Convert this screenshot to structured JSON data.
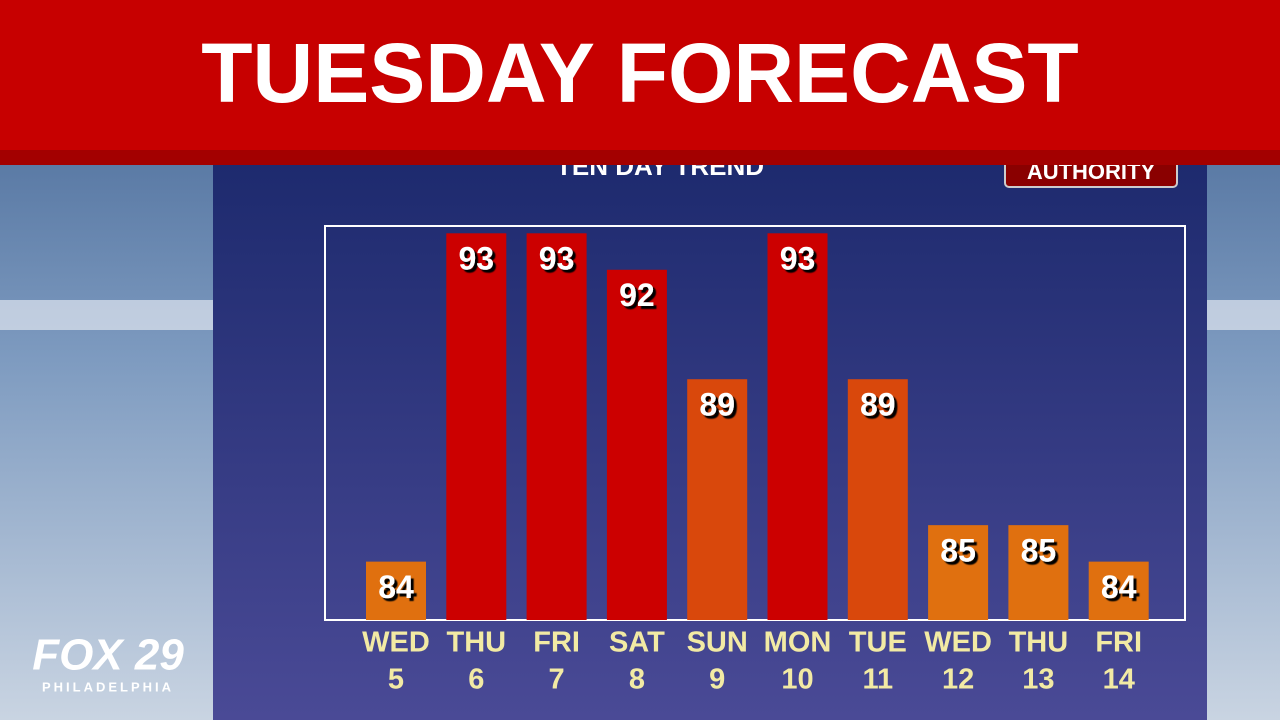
{
  "chart_data": {
    "type": "bar",
    "title": "TUESDAY FORECAST",
    "subtitle": "TEN DAY TREND",
    "brand": "AUTHORITY",
    "logo": {
      "name": "FOX 29",
      "city": "PHILADELPHIA"
    },
    "categories": [
      [
        "WED",
        "5"
      ],
      [
        "THU",
        "6"
      ],
      [
        "FRI",
        "7"
      ],
      [
        "SAT",
        "8"
      ],
      [
        "SUN",
        "9"
      ],
      [
        "MON",
        "10"
      ],
      [
        "TUE",
        "11"
      ],
      [
        "WED",
        "12"
      ],
      [
        "THU",
        "13"
      ],
      [
        "FRI",
        "14"
      ]
    ],
    "values": [
      84,
      93,
      93,
      92,
      89,
      93,
      89,
      85,
      85,
      84
    ],
    "colors": [
      "#e0700f",
      "#cc0000",
      "#cc0000",
      "#cc0000",
      "#d9480c",
      "#cc0000",
      "#d9480c",
      "#e0700f",
      "#e0700f",
      "#e0700f"
    ],
    "ylim": [
      82.4,
      93.2
    ]
  }
}
